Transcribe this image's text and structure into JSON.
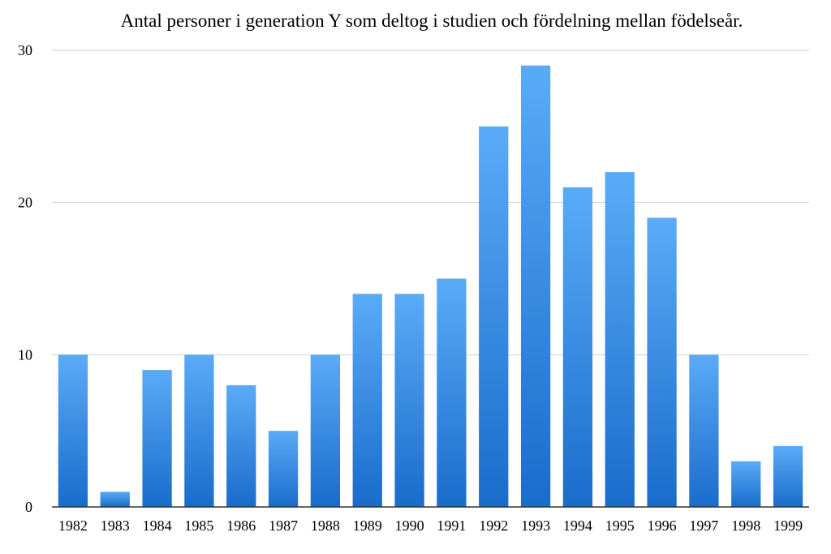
{
  "chart_data": {
    "type": "bar",
    "title": "Antal personer i generation Y som deltog i studien och fördelning mellan födelseår.",
    "xlabel": "",
    "ylabel": "",
    "categories": [
      "1982",
      "1983",
      "1984",
      "1985",
      "1986",
      "1987",
      "1988",
      "1989",
      "1990",
      "1991",
      "1992",
      "1993",
      "1994",
      "1995",
      "1996",
      "1997",
      "1998",
      "1999"
    ],
    "values": [
      10,
      1,
      9,
      10,
      8,
      5,
      10,
      14,
      14,
      15,
      25,
      29,
      21,
      22,
      19,
      10,
      3,
      4
    ],
    "ylim": [
      0,
      30
    ],
    "yticks": [
      0,
      10,
      20,
      30
    ],
    "grid": true,
    "legend": "none",
    "colors": {
      "bar_top": "#5aabf7",
      "bar_bottom": "#1a6ccc",
      "grid": "#cfcfcf",
      "axis": "#333333"
    }
  }
}
